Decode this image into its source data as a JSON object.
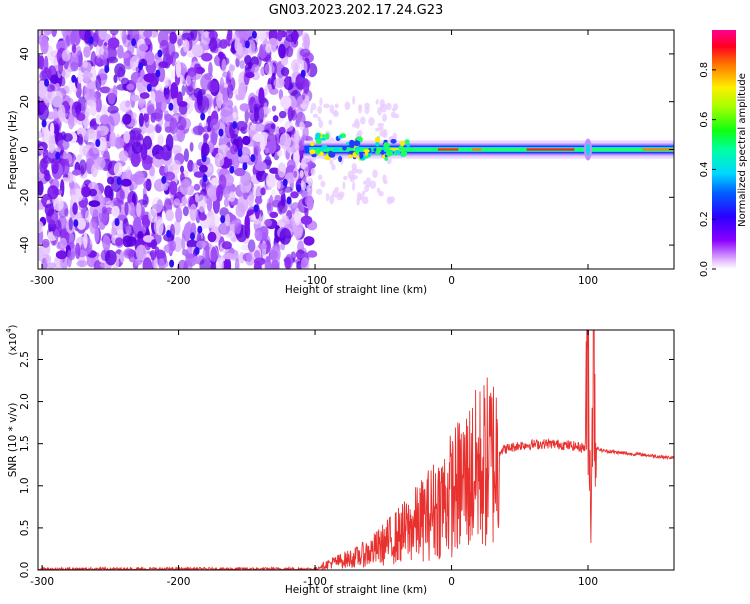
{
  "title": "GN03.2023.202.17.24.G23",
  "colorbar": {
    "label": "Normalized spectral amplitude",
    "ticks": [
      "0.0",
      "0.2",
      "0.4",
      "0.6",
      "0.8"
    ],
    "range": [
      0,
      0.96
    ]
  },
  "chart_data": [
    {
      "type": "heatmap",
      "title": "",
      "xlabel": "Height of straight line (km)",
      "ylabel": "Frequency (Hz)",
      "xlim": [
        -303,
        163
      ],
      "ylim": [
        -50,
        50
      ],
      "xticks": [
        -300,
        -200,
        -100,
        0,
        100
      ],
      "yticks": [
        -40,
        -20,
        0,
        20,
        40
      ],
      "colormap": "rainbow (magenta-red)",
      "description_points": {
        "noise_region_x": [
          -303,
          -102
        ],
        "signal_line_freq": 0,
        "signal_line_x": [
          -108,
          163
        ],
        "spike_x": 100
      }
    },
    {
      "type": "line",
      "title": "",
      "xlabel": "Height of straight line (km)",
      "ylabel": "SNR (10 * v/v)",
      "scale_label": "(x10",
      "scale_exp": "4",
      "scale_suffix": ")",
      "xlim": [
        -303,
        163
      ],
      "ylim": [
        0,
        2.85
      ],
      "xticks": [
        -300,
        -200,
        -100,
        0,
        100
      ],
      "yticks": [
        "0.0",
        "0.5",
        "1.0",
        "1.5",
        "2.0",
        "2.5"
      ],
      "color": "#e8312f",
      "series": [
        {
          "x": [
            -303,
            -250,
            -200,
            -150,
            -100,
            -90,
            -80,
            -70,
            -60,
            -50,
            -40,
            -30,
            -20,
            -10,
            0,
            10,
            20,
            30,
            40,
            50,
            60,
            70,
            80,
            90,
            98,
            100,
            102,
            104,
            106,
            110,
            120,
            130,
            140,
            150,
            163
          ],
          "values": [
            0.01,
            0.01,
            0.01,
            0.01,
            0.01,
            0.08,
            0.12,
            0.16,
            0.22,
            0.32,
            0.42,
            0.52,
            0.65,
            0.8,
            0.95,
            1.12,
            1.27,
            1.38,
            1.44,
            1.48,
            1.49,
            1.5,
            1.49,
            1.47,
            1.45,
            2.7,
            0.6,
            2.8,
            1.45,
            1.42,
            1.4,
            1.38,
            1.37,
            1.35,
            1.33
          ]
        }
      ]
    }
  ]
}
